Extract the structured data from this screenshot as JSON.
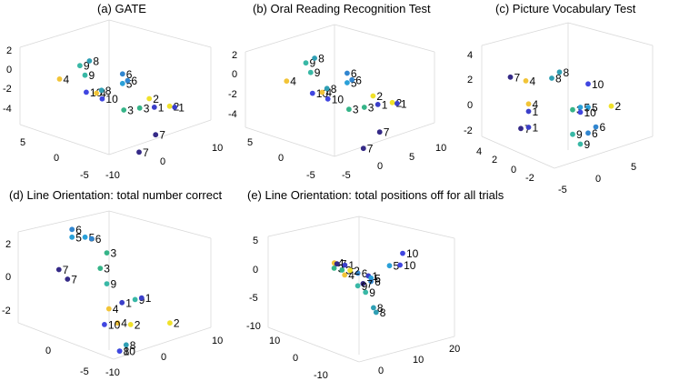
{
  "colors": {
    "1": "#3b3fc9",
    "2": "#f0e12a",
    "3": "#35b488",
    "4": "#f2c437",
    "5": "#2aa0d8",
    "6": "#3186d0",
    "7": "#352a87",
    "8": "#2f9fb4",
    "9": "#39b8a6",
    "10": "#4046e0"
  },
  "chart_data": [
    {
      "type": "scatter",
      "title": "(a) GATE",
      "ticks_z": [
        "2",
        "0",
        "-2",
        "-4"
      ],
      "ticks_left": [
        "5",
        "0",
        "-5"
      ],
      "ticks_right": [
        "-10",
        "0",
        "10"
      ],
      "points": [
        {
          "label": "9",
          "x": -2,
          "y": 3,
          "z": 1.6
        },
        {
          "label": "8",
          "x": 1,
          "y": 4,
          "z": 1.9
        },
        {
          "label": "9",
          "x": -1,
          "y": 3,
          "z": 0.6
        },
        {
          "label": "4",
          "x": -6,
          "y": 3,
          "z": 0.2
        },
        {
          "label": "10",
          "x": -3,
          "y": 1,
          "z": -0.8
        },
        {
          "label": "4",
          "x": -1,
          "y": 1,
          "z": -0.9
        },
        {
          "label": "8",
          "x": 0,
          "y": 1,
          "z": -0.6
        },
        {
          "label": "10",
          "x": -1,
          "y": 0,
          "z": -1.3
        },
        {
          "label": "6",
          "x": 3,
          "y": 0,
          "z": 1.3
        },
        {
          "label": "5",
          "x": 3,
          "y": 0,
          "z": 0.3
        },
        {
          "label": "6",
          "x": 4,
          "y": 0,
          "z": 0.6
        },
        {
          "label": "3",
          "x": 1,
          "y": -2,
          "z": -2.1
        },
        {
          "label": "3",
          "x": 3,
          "y": -3,
          "z": -1.7
        },
        {
          "label": "2",
          "x": 6,
          "y": -2,
          "z": -0.9
        },
        {
          "label": "1",
          "x": 7,
          "y": -2,
          "z": -1.8
        },
        {
          "label": "2",
          "x": 10,
          "y": -2,
          "z": -1.7
        },
        {
          "label": "1",
          "x": 11,
          "y": -2,
          "z": -1.8
        },
        {
          "label": "7",
          "x": 5,
          "y": -4,
          "z": -4.3
        },
        {
          "label": "7",
          "x": 4,
          "y": -2,
          "z": -6.5
        }
      ]
    },
    {
      "type": "scatter",
      "title": "(b) Oral Reading Recognition Test",
      "ticks_z": [
        "2",
        "0",
        "-2",
        "-4"
      ],
      "ticks_left": [
        "5",
        "0",
        "-5"
      ],
      "ticks_right": [
        "-5",
        "0",
        "5",
        "10"
      ],
      "points": [
        {
          "label": "9",
          "x": -2,
          "y": 3,
          "z": 1.6
        },
        {
          "label": "8",
          "x": 1,
          "y": 4,
          "z": 1.9
        },
        {
          "label": "9",
          "x": -1,
          "y": 3,
          "z": 0.6
        },
        {
          "label": "4",
          "x": -6,
          "y": 3,
          "z": -0.3
        },
        {
          "label": "10",
          "x": -3,
          "y": 1,
          "z": -1.2
        },
        {
          "label": "4",
          "x": -1,
          "y": 1,
          "z": -1.1
        },
        {
          "label": "8",
          "x": 0,
          "y": 1,
          "z": -0.7
        },
        {
          "label": "10",
          "x": -1,
          "y": 0,
          "z": -1.6
        },
        {
          "label": "6",
          "x": 3,
          "y": 0,
          "z": 1.1
        },
        {
          "label": "5",
          "x": 3,
          "y": 0,
          "z": 0.1
        },
        {
          "label": "6",
          "x": 4,
          "y": 0,
          "z": 0.4
        },
        {
          "label": "3",
          "x": 1,
          "y": -2,
          "z": -2.3
        },
        {
          "label": "3",
          "x": 3,
          "y": -3,
          "z": -1.9
        },
        {
          "label": "2",
          "x": 6,
          "y": -2,
          "z": -0.9
        },
        {
          "label": "1",
          "x": 7,
          "y": -2,
          "z": -1.8
        },
        {
          "label": "2",
          "x": 10,
          "y": -2,
          "z": -1.6
        },
        {
          "label": "1",
          "x": 11,
          "y": -2,
          "z": -1.7
        },
        {
          "label": "7",
          "x": 5,
          "y": -4,
          "z": -4.3
        },
        {
          "label": "7",
          "x": 4,
          "y": -2,
          "z": -6.4
        }
      ]
    },
    {
      "type": "scatter",
      "title": "(c) Picture Vocabulary Test",
      "ticks_z": [
        "4",
        "2",
        "0",
        "-2"
      ],
      "ticks_left": [
        "4",
        "2",
        "0",
        "-2"
      ],
      "ticks_right": [
        "-5",
        "0",
        "5"
      ],
      "points": [
        {
          "label": "7",
          "x": -4,
          "y": 3,
          "z": 1.9
        },
        {
          "label": "4",
          "x": -2,
          "y": 3,
          "z": 1.6
        },
        {
          "label": "8",
          "x": 0,
          "y": 2,
          "z": 2.0
        },
        {
          "label": "8",
          "x": 1,
          "y": 2,
          "z": 2.5
        },
        {
          "label": "10",
          "x": 2,
          "y": 0,
          "z": 1.9
        },
        {
          "label": "2",
          "x": 5,
          "y": 0,
          "z": 0.1
        },
        {
          "label": "4",
          "x": -3,
          "y": 2,
          "z": -0.1
        },
        {
          "label": "1",
          "x": -3,
          "y": 2,
          "z": -0.7
        },
        {
          "label": "3",
          "x": 0,
          "y": 0,
          "z": -0.2
        },
        {
          "label": "5",
          "x": 1,
          "y": 0,
          "z": 0.0
        },
        {
          "label": "5",
          "x": 2,
          "y": 0,
          "z": 0.0
        },
        {
          "label": "10",
          "x": 1,
          "y": 0,
          "z": -0.4
        },
        {
          "label": "7",
          "x": -4,
          "y": 2,
          "z": -2.1
        },
        {
          "label": "1",
          "x": -3,
          "y": 2,
          "z": -2.0
        },
        {
          "label": "6",
          "x": 3,
          "y": 0,
          "z": -1.6
        },
        {
          "label": "9",
          "x": 0,
          "y": 0,
          "z": -2.2
        },
        {
          "label": "6",
          "x": 2,
          "y": 0,
          "z": -2.1
        },
        {
          "label": "9",
          "x": 1,
          "y": 0,
          "z": -3.0
        }
      ]
    },
    {
      "type": "scatter",
      "title": "(d) Line Orientation: total number correct",
      "ticks_z": [
        "2",
        "0",
        "-2"
      ],
      "ticks_left": [
        "0",
        "-5"
      ],
      "ticks_right": [
        "-10",
        "0",
        "10"
      ],
      "points": [
        {
          "label": "6",
          "x": -4,
          "y": 2,
          "z": 3.1
        },
        {
          "label": "5",
          "x": -4,
          "y": 2,
          "z": 2.6
        },
        {
          "label": "5",
          "x": -2,
          "y": 2,
          "z": 2.6
        },
        {
          "label": "6",
          "x": -1,
          "y": 2,
          "z": 2.5
        },
        {
          "label": "3",
          "x": 0,
          "y": 1,
          "z": 1.7
        },
        {
          "label": "7",
          "x": -6,
          "y": 2,
          "z": 0.5
        },
        {
          "label": "7",
          "x": -6,
          "y": 1,
          "z": 0.0
        },
        {
          "label": "3",
          "x": -1,
          "y": 1,
          "z": 0.7
        },
        {
          "label": "9",
          "x": 0,
          "y": 1,
          "z": -0.3
        },
        {
          "label": "1",
          "x": 1,
          "y": 0,
          "z": -1.4
        },
        {
          "label": "9",
          "x": 3,
          "y": 0,
          "z": -1.2
        },
        {
          "label": "1",
          "x": 4,
          "y": 0,
          "z": -1.1
        },
        {
          "label": "4",
          "x": -1,
          "y": 0,
          "z": -1.8
        },
        {
          "label": "4",
          "x": -1,
          "y": -1,
          "z": -2.6
        },
        {
          "label": "10",
          "x": -3,
          "y": -1,
          "z": -2.7
        },
        {
          "label": "2",
          "x": 1,
          "y": -1,
          "z": -2.7
        },
        {
          "label": "2",
          "x": 7,
          "y": -1,
          "z": -2.6
        },
        {
          "label": "8",
          "x": -1,
          "y": -2,
          "z": -3.9
        },
        {
          "label": "8",
          "x": -2,
          "y": -2,
          "z": -4.3
        },
        {
          "label": "10",
          "x": -2,
          "y": -2,
          "z": -4.3
        }
      ]
    },
    {
      "type": "scatter",
      "title": "(e) Line Orientation: total positions off for all trials",
      "ticks_z": [
        "5",
        "0",
        "-5",
        "-10"
      ],
      "ticks_left": [
        "10",
        "0",
        "-10"
      ],
      "ticks_right": [
        "0",
        "10",
        "20"
      ],
      "points": [
        {
          "label": "10",
          "x": 20,
          "y": 0,
          "z": 6.0
        },
        {
          "label": "5",
          "x": 15,
          "y": 0,
          "z": 2.0
        },
        {
          "label": "10",
          "x": 19,
          "y": 0,
          "z": 2.2
        },
        {
          "label": "3",
          "x": -6,
          "y": 0,
          "z": 1.2
        },
        {
          "label": "3",
          "x": -3,
          "y": 0,
          "z": 0.6
        },
        {
          "label": "4",
          "x": 2,
          "y": 2,
          "z": 2.3
        },
        {
          "label": "7",
          "x": 3,
          "y": 2,
          "z": 2.0
        },
        {
          "label": "1",
          "x": 6,
          "y": 2,
          "z": 1.6
        },
        {
          "label": "4",
          "x": -2,
          "y": 0,
          "z": -1.0
        },
        {
          "label": "6",
          "x": 3,
          "y": 0,
          "z": -0.4
        },
        {
          "label": "2",
          "x": 4,
          "y": 1,
          "z": 0.2
        },
        {
          "label": "1",
          "x": 7,
          "y": 0,
          "z": -1.3
        },
        {
          "label": "5",
          "x": 8,
          "y": 0,
          "z": -2.0
        },
        {
          "label": "6",
          "x": 4,
          "y": -1,
          "z": -2.8
        },
        {
          "label": "7",
          "x": 1,
          "y": -1,
          "z": -3.5
        },
        {
          "label": "9",
          "x": -1,
          "y": -1,
          "z": -4.2
        },
        {
          "label": "9",
          "x": -2,
          "y": -2,
          "z": -6.0
        },
        {
          "label": "8",
          "x": 1,
          "y": -2,
          "z": -11.0
        },
        {
          "label": "8",
          "x": 2,
          "y": -2,
          "z": -12.5
        }
      ]
    }
  ]
}
